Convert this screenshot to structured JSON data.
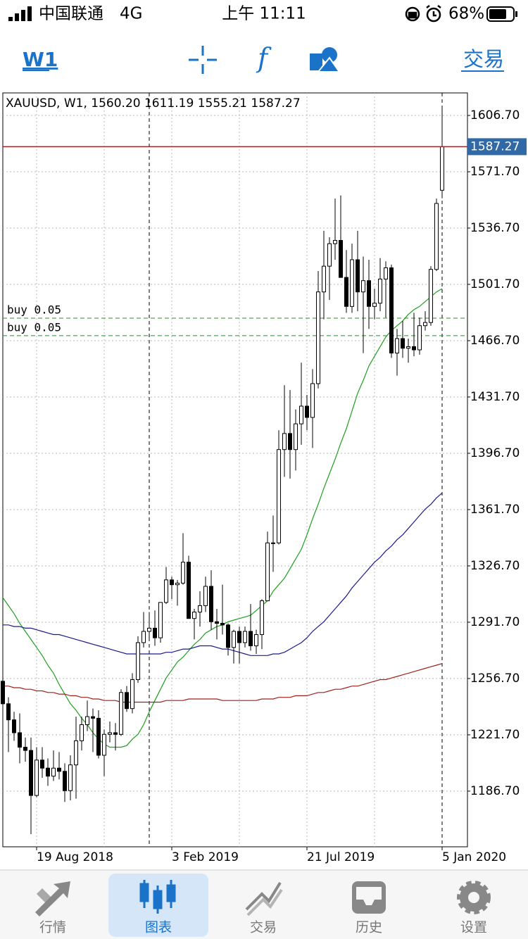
{
  "status_bar": {
    "carrier": "中国联通",
    "network": "4G",
    "time": "上午 11:11",
    "battery": "68%"
  },
  "toolbar": {
    "period": "W1",
    "trade": "交易"
  },
  "chart_data": {
    "type": "candlestick",
    "title": "XAUUSD, W1, 1560.20 1611.19 1555.21 1587.27",
    "categories": [
      null,
      null,
      null,
      null,
      null,
      null,
      "19 Aug 2018",
      null,
      null,
      null,
      null,
      null,
      null,
      null,
      null,
      null,
      null,
      null,
      null,
      null,
      null,
      null,
      null,
      null,
      null,
      null,
      null,
      null,
      null,
      null,
      "3 Feb 2019",
      null,
      null,
      null,
      null,
      null,
      null,
      null,
      null,
      null,
      null,
      null,
      null,
      null,
      null,
      null,
      null,
      null,
      null,
      null,
      null,
      null,
      null,
      null,
      "21 Jul 2019",
      null,
      null,
      null,
      null,
      null,
      null,
      null,
      null,
      null,
      null,
      null,
      null,
      null,
      null,
      null,
      null,
      null,
      null,
      null,
      null,
      null,
      null,
      null,
      "5 Jan 2020"
    ],
    "open": [
      1255,
      1241,
      1231,
      1223,
      1214,
      1212,
      1184,
      1206,
      1201,
      1196,
      1201,
      1199,
      1187,
      1203,
      1218,
      1228,
      1233,
      1232,
      1209,
      1222,
      1223,
      1222,
      1248,
      1238,
      1256,
      1279,
      1286,
      1288,
      1282,
      1304,
      1318,
      1315,
      1316,
      1329,
      1294,
      1298,
      1302,
      1314,
      1292,
      1291,
      1290,
      1276,
      1286,
      1279,
      1286,
      1277,
      1284,
      1305,
      1341,
      1341,
      1399,
      1409,
      1399,
      1415,
      1426,
      1419,
      1440,
      1497,
      1513,
      1527,
      1529,
      1506,
      1488,
      1517,
      1497,
      1504,
      1488,
      1490,
      1505,
      1512,
      1459,
      1468,
      1462,
      1463,
      1461,
      1476,
      1478,
      1511,
      1560.2
    ],
    "high": [
      1262,
      1245,
      1236,
      1235,
      1220,
      1220,
      1214,
      1214,
      1207,
      1212,
      1211,
      1204,
      1209,
      1233,
      1233,
      1243,
      1238,
      1237,
      1225,
      1230,
      1229,
      1250,
      1252,
      1260,
      1283,
      1298,
      1298,
      1299,
      1304,
      1326,
      1320,
      1318,
      1347,
      1333,
      1300,
      1311,
      1320,
      1324,
      1300,
      1315,
      1291,
      1287,
      1289,
      1289,
      1303,
      1287,
      1306,
      1348,
      1358,
      1411,
      1439,
      1436,
      1424,
      1453,
      1433,
      1449,
      1510,
      1535,
      1531,
      1555,
      1557,
      1523,
      1527,
      1535,
      1519,
      1517,
      1499,
      1518,
      1516,
      1514,
      1474,
      1479,
      1468,
      1484,
      1481,
      1485,
      1513,
      1555,
      1611.19
    ],
    "low": [
      1237,
      1211,
      1218,
      1204,
      1205,
      1160,
      1183,
      1195,
      1190,
      1193,
      1194,
      1180,
      1181,
      1182,
      1212,
      1224,
      1211,
      1207,
      1196,
      1217,
      1212,
      1221,
      1236,
      1235,
      1254,
      1276,
      1280,
      1277,
      1279,
      1303,
      1306,
      1302,
      1315,
      1294,
      1281,
      1289,
      1298,
      1287,
      1281,
      1284,
      1271,
      1266,
      1266,
      1276,
      1274,
      1272,
      1275,
      1305,
      1323,
      1340,
      1382,
      1381,
      1386,
      1402,
      1411,
      1400,
      1437,
      1480,
      1492,
      1517,
      1506,
      1484,
      1484,
      1485,
      1459,
      1474,
      1480,
      1485,
      1481,
      1456,
      1445,
      1456,
      1453,
      1457,
      1458,
      1473,
      1476,
      1510,
      1555.21
    ],
    "close": [
      1241,
      1231,
      1223,
      1214,
      1212,
      1184,
      1206,
      1201,
      1196,
      1201,
      1199,
      1187,
      1203,
      1218,
      1228,
      1233,
      1232,
      1209,
      1222,
      1223,
      1222,
      1248,
      1238,
      1256,
      1279,
      1286,
      1288,
      1282,
      1304,
      1318,
      1315,
      1316,
      1329,
      1294,
      1298,
      1302,
      1314,
      1292,
      1291,
      1290,
      1276,
      1286,
      1279,
      1286,
      1277,
      1284,
      1305,
      1341,
      1341,
      1399,
      1409,
      1399,
      1415,
      1426,
      1419,
      1440,
      1497,
      1513,
      1527,
      1529,
      1506,
      1488,
      1517,
      1497,
      1504,
      1488,
      1490,
      1505,
      1512,
      1459,
      1468,
      1462,
      1463,
      1461,
      1476,
      1478,
      1511,
      1552,
      1587.27
    ],
    "up_color": "#ffffff",
    "down_color": "#000000",
    "price_line_color": "#a0262a",
    "price_label_color": "#3168a6",
    "series": [
      {
        "color": "#1fa01f",
        "values": [
          1307,
          1302,
          1297,
          1291,
          1286,
          1281,
          1276,
          1271,
          1265,
          1260,
          1253,
          1247,
          1241,
          1237,
          1232,
          1228,
          1223,
          1219,
          1216,
          1214,
          1214,
          1214,
          1215,
          1219,
          1222,
          1228,
          1236,
          1243,
          1250,
          1257,
          1262,
          1267,
          1270,
          1274,
          1278,
          1281,
          1285,
          1287,
          1289,
          1290,
          1292,
          1293,
          1294,
          1295,
          1296,
          1299,
          1302,
          1305,
          1311,
          1315,
          1319,
          1325,
          1331,
          1337,
          1346,
          1356,
          1365,
          1375,
          1384,
          1393,
          1403,
          1412,
          1423,
          1434,
          1442,
          1451,
          1457,
          1463,
          1469,
          1473,
          1476,
          1479,
          1483,
          1486,
          1488,
          1491,
          1494,
          1497,
          1499
        ]
      },
      {
        "color": "#1a1a8c",
        "values": [
          1290,
          1290,
          1289,
          1289,
          1288,
          1288,
          1287,
          1286,
          1285,
          1284,
          1284,
          1283,
          1282,
          1281,
          1280,
          1279,
          1278,
          1277,
          1276,
          1275,
          1274,
          1273,
          1272,
          1272,
          1272,
          1272,
          1272,
          1272,
          1272,
          1273,
          1273,
          1274,
          1275,
          1275,
          1276,
          1277,
          1277,
          1277,
          1276,
          1275,
          1275,
          1274,
          1273,
          1272,
          1271,
          1271,
          1271,
          1271,
          1272,
          1272,
          1273,
          1275,
          1277,
          1279,
          1282,
          1286,
          1289,
          1292,
          1296,
          1300,
          1304,
          1308,
          1313,
          1317,
          1321,
          1325,
          1329,
          1332,
          1336,
          1339,
          1343,
          1346,
          1350,
          1354,
          1358,
          1362,
          1365,
          1369,
          1372
        ]
      },
      {
        "color": "#a0201a",
        "values": [
          1252,
          1252,
          1251,
          1251,
          1250,
          1250,
          1249,
          1249,
          1248,
          1248,
          1247,
          1247,
          1246,
          1246,
          1245,
          1245,
          1244,
          1244,
          1243,
          1243,
          1243,
          1242,
          1242,
          1242,
          1242,
          1242,
          1242,
          1242,
          1242,
          1243,
          1243,
          1243,
          1243,
          1244,
          1244,
          1244,
          1244,
          1244,
          1244,
          1243,
          1243,
          1243,
          1243,
          1243,
          1243,
          1243,
          1244,
          1244,
          1244,
          1245,
          1245,
          1245,
          1246,
          1246,
          1246,
          1247,
          1248,
          1248,
          1249,
          1250,
          1250,
          1251,
          1252,
          1252,
          1253,
          1254,
          1255,
          1256,
          1256,
          1257,
          1258,
          1259,
          1260,
          1261,
          1262,
          1263,
          1264,
          1265,
          1266
        ]
      }
    ],
    "levels": [
      {
        "label": "buy 0.05",
        "value": 1480.7,
        "color": "#2e8b2e"
      },
      {
        "label": "buy 0.05",
        "value": 1469.8,
        "color": "#2e8b2e"
      }
    ],
    "ylim": [
      1152.1,
      1620.7
    ],
    "yticks": [
      {
        "value": 1186.7,
        "label": "1186.70"
      },
      {
        "value": 1221.7,
        "label": "1221.70"
      },
      {
        "value": 1256.7,
        "label": "1256.70"
      },
      {
        "value": 1291.7,
        "label": "1291.70"
      },
      {
        "value": 1326.7,
        "label": "1326.70"
      },
      {
        "value": 1361.7,
        "label": "1361.70"
      },
      {
        "value": 1396.7,
        "label": "1396.70"
      },
      {
        "value": 1431.7,
        "label": "1431.70"
      },
      {
        "value": 1466.7,
        "label": "1466.70"
      },
      {
        "value": 1501.7,
        "label": "1501.70"
      },
      {
        "value": 1536.7,
        "label": "1536.70"
      },
      {
        "value": 1571.7,
        "label": "1571.70"
      },
      {
        "value": 1606.7,
        "label": "1606.70"
      }
    ],
    "grid": true
  },
  "tabs": [
    "行情",
    "图表",
    "交易",
    "历史",
    "设置"
  ]
}
